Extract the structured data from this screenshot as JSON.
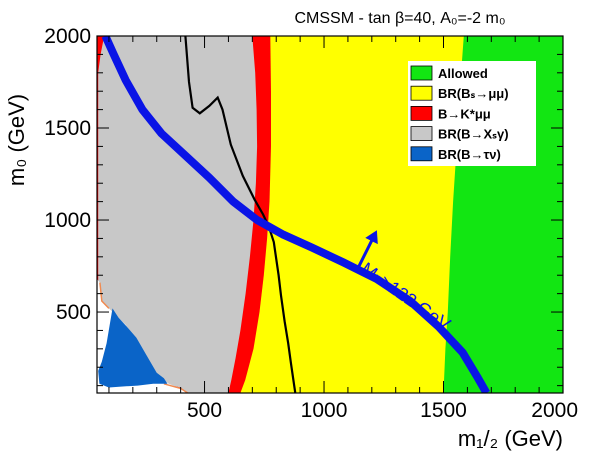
{
  "chart_data": {
    "type": "area",
    "title": "CMSSM - tan β=40, A₀=-2 m₀",
    "xlabel": "m₁/₂ (GeV)",
    "ylabel": "m₀ (GeV)",
    "xlim": [
      50,
      2000
    ],
    "ylim": [
      60,
      2000
    ],
    "x_ticks": [
      {
        "value": 500,
        "label": "500"
      },
      {
        "value": 1000,
        "label": "1000"
      },
      {
        "value": 1500,
        "label": "1500"
      },
      {
        "value": 2000,
        "label": "2000"
      }
    ],
    "y_ticks": [
      {
        "value": 500,
        "label": "500"
      },
      {
        "value": 1000,
        "label": "1000"
      },
      {
        "value": 1500,
        "label": "1500"
      },
      {
        "value": 2000,
        "label": "2000"
      }
    ],
    "legend_position": "top-right",
    "legend": [
      {
        "key": "allowed",
        "label": "Allowed",
        "color": "#12e612"
      },
      {
        "key": "bs",
        "label": "BR(Bₛ→μμ)",
        "color": "#ffff00"
      },
      {
        "key": "bk",
        "label": "B→K*μμ",
        "color": "#ff0000"
      },
      {
        "key": "bxs",
        "label": "BR(B→Xₛγ)",
        "color": "#c8c8c8"
      },
      {
        "key": "btau",
        "label": "BR(B→τν)",
        "color": "#0a64c8"
      }
    ],
    "regions": {
      "allowed": {
        "color": "#12e612",
        "description_boundary": [
          [
            1585,
            2000
          ],
          [
            1568,
            1700
          ],
          [
            1555,
            1400
          ],
          [
            1540,
            1100
          ],
          [
            1528,
            800
          ],
          [
            1518,
            500
          ],
          [
            1508,
            300
          ],
          [
            1500,
            60
          ]
        ]
      },
      "bs": {
        "color": "#ffff00",
        "boundary_left": [
          [
            775,
            2000
          ],
          [
            778,
            1700
          ],
          [
            778,
            1400
          ],
          [
            772,
            1100
          ],
          [
            762,
            900
          ],
          [
            748,
            700
          ],
          [
            730,
            500
          ],
          [
            705,
            300
          ],
          [
            670,
            130
          ],
          [
            650,
            60
          ]
        ]
      },
      "bk": {
        "color": "#ff0000",
        "boundary_left": [
          [
            700,
            2000
          ],
          [
            712,
            1800
          ],
          [
            718,
            1600
          ],
          [
            720,
            1400
          ],
          [
            715,
            1200
          ],
          [
            705,
            1000
          ],
          [
            690,
            800
          ],
          [
            672,
            600
          ],
          [
            650,
            400
          ],
          [
            630,
            250
          ],
          [
            612,
            130
          ],
          [
            600,
            60
          ]
        ]
      },
      "bxs": {
        "color": "#c8c8c8",
        "boundary_left": [
          [
            80,
            2000
          ],
          [
            65,
            1900
          ],
          [
            58,
            1800
          ],
          [
            55,
            1300
          ],
          [
            55,
            750
          ],
          [
            60,
            700
          ],
          [
            65,
            650
          ]
        ]
      },
      "btau": {
        "color": "#0a64c8",
        "polygon": [
          [
            55,
            180
          ],
          [
            70,
            230
          ],
          [
            90,
            330
          ],
          [
            115,
            520
          ],
          [
            140,
            470
          ],
          [
            175,
            420
          ],
          [
            215,
            360
          ],
          [
            255,
            270
          ],
          [
            300,
            170
          ],
          [
            330,
            140
          ],
          [
            345,
            110
          ],
          [
            285,
            110
          ],
          [
            220,
            100
          ],
          [
            150,
            95
          ],
          [
            100,
            90
          ],
          [
            60,
            110
          ]
        ]
      }
    },
    "curves": {
      "mh_limit": {
        "label": "Mₕ>122 GeV",
        "color": "#0a14e6",
        "points": [
          [
            85,
            2000
          ],
          [
            120,
            1900
          ],
          [
            170,
            1760
          ],
          [
            240,
            1600
          ],
          [
            320,
            1470
          ],
          [
            420,
            1350
          ],
          [
            520,
            1230
          ],
          [
            620,
            1100
          ],
          [
            720,
            1000
          ],
          [
            830,
            920
          ],
          [
            950,
            850
          ],
          [
            1080,
            770
          ],
          [
            1220,
            680
          ],
          [
            1360,
            560
          ],
          [
            1480,
            420
          ],
          [
            1580,
            280
          ],
          [
            1640,
            150
          ],
          [
            1680,
            60
          ]
        ],
        "arrow_from": [
          1135,
          720
        ],
        "arrow_to": [
          1210,
          915
        ]
      },
      "black_line": {
        "color": "#000000",
        "points": [
          [
            420,
            2000
          ],
          [
            435,
            1750
          ],
          [
            450,
            1610
          ],
          [
            480,
            1580
          ],
          [
            520,
            1620
          ],
          [
            555,
            1665
          ],
          [
            575,
            1600
          ],
          [
            610,
            1410
          ],
          [
            660,
            1240
          ],
          [
            710,
            1110
          ],
          [
            745,
            1030
          ],
          [
            770,
            960
          ],
          [
            790,
            880
          ],
          [
            800,
            790
          ],
          [
            810,
            700
          ],
          [
            820,
            590
          ],
          [
            835,
            450
          ],
          [
            850,
            330
          ],
          [
            862,
            220
          ],
          [
            875,
            100
          ],
          [
            880,
            60
          ]
        ]
      }
    }
  }
}
